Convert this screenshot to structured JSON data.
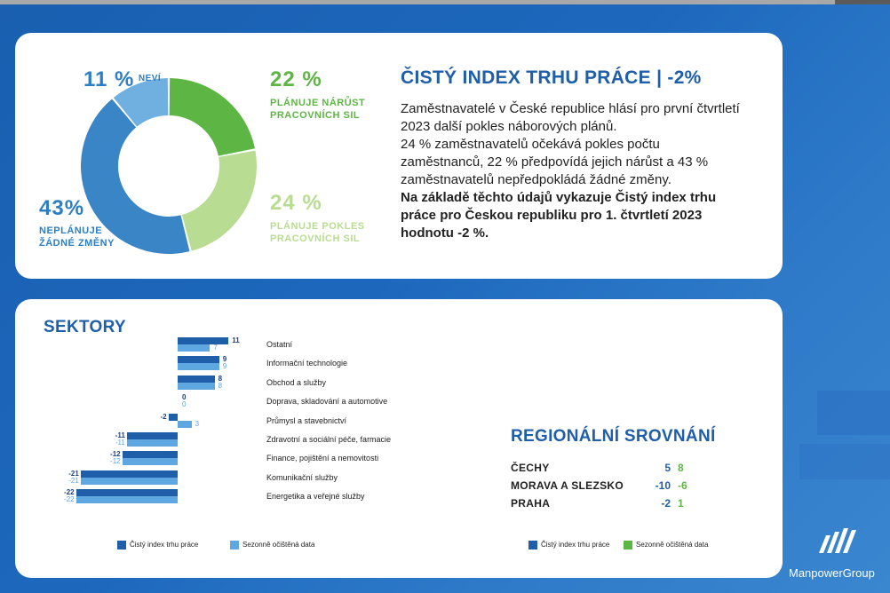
{
  "donut": {
    "segments": [
      {
        "label": "PLÁNUJE NÁRŮST PRACOVNÍCH SIL",
        "pct_text": "22 %",
        "value": 22,
        "color": "#5db644"
      },
      {
        "label": "PLÁNUJE POKLES PRACOVNÍCH SIL",
        "pct_text": "24 %",
        "value": 24,
        "color": "#b8dc91"
      },
      {
        "label": "NEPLÁNUJE ŽÁDNÉ ZMĚNY",
        "pct_text": "43%",
        "value": 43,
        "color": "#3a85c6"
      },
      {
        "label": "NEVÍ",
        "pct_text": "11 %",
        "value": 11,
        "color": "#6fb0e0"
      }
    ]
  },
  "headline": {
    "title": "ČISTÝ INDEX TRHU PRÁCE | -2%",
    "p1": "Zaměstnavatelé v České republice hlásí pro první čtvrtletí 2023 další pokles náborových plánů.",
    "p2": "24 % zaměstnavatelů očekává pokles počtu zaměstnanců, 22 % předpovídá jejich nárůst a 43 % zaměstnavatelů nepředpokládá žádné změny.",
    "p3": "Na základě těchto údajů vykazuje Čistý index trhu práce pro Českou republiku pro 1. čtvrtletí 2023 hodnotu -2 %."
  },
  "sectors": {
    "title": "SEKTORY",
    "legend": [
      "Čistý index trhu práce",
      "Sezonně očištěná data"
    ],
    "colors": {
      "nei": "#1f5ea8",
      "sa": "#5ea7e0"
    }
  },
  "regions": {
    "title": "REGIONÁLNÍ SROVNÁNÍ",
    "rows": [
      {
        "name": "ČECHY",
        "nei": "5",
        "sa": "8"
      },
      {
        "name": "MORAVA A SLEZSKO",
        "nei": "-10",
        "sa": "-6"
      },
      {
        "name": "PRAHA",
        "nei": "-2",
        "sa": "1"
      }
    ],
    "legend": [
      "Čistý index trhu práce",
      "Sezonně očištěná data"
    ],
    "colors": {
      "nei": "#1f5ea8",
      "sa": "#5db644"
    }
  },
  "logo": {
    "text": "ManpowerGroup",
    "mark": "manpower-logo-icon"
  },
  "chart_data": [
    {
      "type": "pie",
      "categories": [
        "PLÁNUJE NÁRŮST PRACOVNÍCH SIL",
        "PLÁNUJE POKLES PRACOVNÍCH SIL",
        "NEPLÁNUJE ŽÁDNÉ ZMĚNY",
        "NEVÍ"
      ],
      "values": [
        22,
        24,
        43,
        11
      ]
    },
    {
      "type": "bar",
      "title": "SEKTORY",
      "categories": [
        "Ostatní",
        "Informační technologie",
        "Obchod a služby",
        "Doprava, skladování a automotive",
        "Průmysl a stavebnictví",
        "Zdravotní a sociální péče, farmacie",
        "Finance, pojištění a nemovitosti",
        "Komunikační služby",
        "Energetika a veřejné služby"
      ],
      "series": [
        {
          "name": "Čistý index trhu práce",
          "values": [
            11,
            9,
            8,
            0,
            -2,
            -11,
            -12,
            -21,
            -22
          ]
        },
        {
          "name": "Sezonně očištěná data",
          "values": [
            7,
            9,
            8,
            0,
            3,
            -11,
            -12,
            -21,
            -22
          ]
        }
      ],
      "orientation": "horizontal"
    },
    {
      "type": "table",
      "title": "REGIONÁLNÍ SROVNÁNÍ",
      "categories": [
        "ČECHY",
        "MORAVA A SLEZSKO",
        "PRAHA"
      ],
      "series": [
        {
          "name": "Čistý index trhu práce",
          "values": [
            5,
            -10,
            -2
          ]
        },
        {
          "name": "Sezonně očištěná data",
          "values": [
            8,
            -6,
            1
          ]
        }
      ]
    }
  ]
}
